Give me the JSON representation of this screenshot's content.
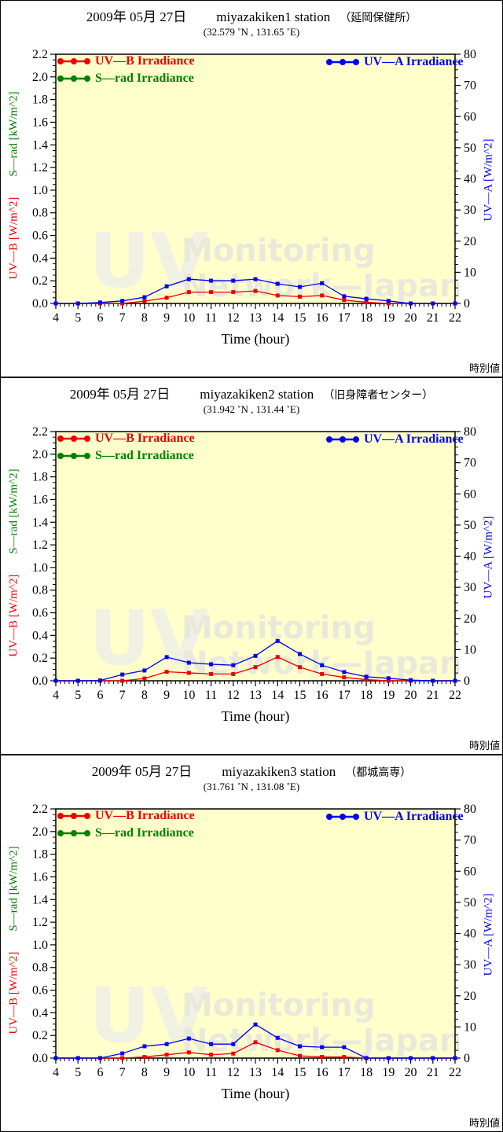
{
  "watermark": {
    "big": "UV",
    "line1": "Monitoring",
    "line2": "Network—Japan"
  },
  "footer_note": "時別値",
  "colors": {
    "uvb": "#ee0000",
    "srad": "#008000",
    "uva": "#0000ee",
    "plot_bg": "#ffffcc",
    "frame": "#000000",
    "watermark_big": "#f1f1e3",
    "watermark_words": "#e9e9db"
  },
  "legend": {
    "uvb": "UV—B Irradiance",
    "srad": "S—rad Irradiance",
    "uva": "UV—A Irradiance"
  },
  "axes": {
    "xlabel": "Time (hour)",
    "left_label_uvb": "UV—B [W/m^2]",
    "left_label_srad": "S—rad [kW/m^2]",
    "right_label": "UV—A [W/m^2]"
  },
  "panels": [
    {
      "title_date": "2009年 05月 27日",
      "title_station": "miyazakiken1 station",
      "title_site": "（延岡保健所）",
      "subtitle": "(32.579 ˚N , 131.65 ˚E)"
    },
    {
      "title_date": "2009年 05月 27日",
      "title_station": "miyazakiken2 station",
      "title_site": "（旧身障者センター）",
      "subtitle": "(31.942 ˚N , 131.44 ˚E)"
    },
    {
      "title_date": "2009年 05月 27日",
      "title_station": "miyazakiken3 station",
      "title_site": "（都城高専）",
      "subtitle": "(31.761 ˚N , 131.08 ˚E)"
    }
  ],
  "chart_data": [
    {
      "type": "line",
      "title": "2009年 05月 27日 miyazakiken1 station （延岡保健所）",
      "xlabel": "Time (hour)",
      "x": [
        4,
        5,
        6,
        7,
        8,
        9,
        10,
        11,
        12,
        13,
        14,
        15,
        16,
        17,
        18,
        19,
        20,
        21,
        22
      ],
      "axis_left": {
        "label": "UV—B [W/m^2] / S—rad [kW/m^2]",
        "range": [
          0,
          2.2
        ],
        "tick_step": 0.2,
        "minor_step": 0.05
      },
      "axis_right": {
        "label": "UV—A [W/m^2]",
        "range": [
          0,
          80
        ],
        "tick_step": 10,
        "minor_step": 2.5
      },
      "x_minor_step": 0.2,
      "series": [
        {
          "name": "UV—B Irradiance",
          "axis": "left",
          "color_key": "uvb",
          "values": [
            0,
            0,
            0,
            0,
            0.02,
            0.05,
            0.1,
            0.1,
            0.1,
            0.11,
            0.07,
            0.06,
            0.07,
            0.03,
            0.01,
            0,
            0,
            0,
            0
          ]
        },
        {
          "name": "S—rad Irradiance",
          "axis": "left",
          "color_key": "srad",
          "values": []
        },
        {
          "name": "UV—A Irradiance",
          "axis": "right",
          "color_key": "uva",
          "values": [
            0,
            0,
            0.3,
            0.8,
            2.0,
            5.5,
            7.8,
            7.3,
            7.3,
            7.8,
            6.3,
            5.3,
            6.5,
            2.3,
            1.5,
            0.8,
            0,
            0,
            0
          ]
        }
      ]
    },
    {
      "type": "line",
      "title": "2009年 05月 27日 miyazakiken2 station （旧身障者センター）",
      "xlabel": "Time (hour)",
      "x": [
        4,
        5,
        6,
        7,
        8,
        9,
        10,
        11,
        12,
        13,
        14,
        15,
        16,
        17,
        18,
        19,
        20,
        21,
        22
      ],
      "axis_left": {
        "label": "UV—B [W/m^2] / S—rad [kW/m^2]",
        "range": [
          0,
          2.2
        ],
        "tick_step": 0.2,
        "minor_step": 0.05
      },
      "axis_right": {
        "label": "UV—A [W/m^2]",
        "range": [
          0,
          80
        ],
        "tick_step": 10,
        "minor_step": 2.5
      },
      "x_minor_step": 0.2,
      "series": [
        {
          "name": "UV—B Irradiance",
          "axis": "left",
          "color_key": "uvb",
          "values": [
            0,
            0,
            0,
            0,
            0.02,
            0.08,
            0.07,
            0.06,
            0.06,
            0.12,
            0.21,
            0.12,
            0.06,
            0.03,
            0.01,
            0,
            0,
            0,
            0
          ]
        },
        {
          "name": "S—rad Irradiance",
          "axis": "left",
          "color_key": "srad",
          "values": []
        },
        {
          "name": "UV—A Irradiance",
          "axis": "right",
          "color_key": "uva",
          "values": [
            0,
            0,
            0.1,
            2.0,
            3.3,
            7.6,
            5.8,
            5.3,
            5.0,
            8.0,
            12.8,
            8.6,
            5.0,
            2.8,
            1.3,
            0.8,
            0.2,
            0,
            0
          ]
        }
      ]
    },
    {
      "type": "line",
      "title": "2009年 05月 27日 miyazakiken3 station （都城高専）",
      "xlabel": "Time (hour)",
      "x": [
        4,
        5,
        6,
        7,
        8,
        9,
        10,
        11,
        12,
        13,
        14,
        15,
        16,
        17,
        18,
        19,
        20,
        21,
        22
      ],
      "axis_left": {
        "label": "UV—B [W/m^2] / S—rad [kW/m^2]",
        "range": [
          0,
          2.2
        ],
        "tick_step": 0.2,
        "minor_step": 0.05
      },
      "axis_right": {
        "label": "UV—A [W/m^2]",
        "range": [
          0,
          80
        ],
        "tick_step": 10,
        "minor_step": 2.5
      },
      "x_minor_step": 0.2,
      "series": [
        {
          "name": "UV—B Irradiance",
          "axis": "left",
          "color_key": "uvb",
          "values": [
            0,
            0,
            0,
            0,
            0.01,
            0.03,
            0.05,
            0.03,
            0.04,
            0.14,
            0.07,
            0.02,
            0.01,
            0.01,
            0,
            0,
            0,
            0,
            0
          ]
        },
        {
          "name": "S—rad Irradiance",
          "axis": "left",
          "color_key": "srad",
          "values": []
        },
        {
          "name": "UV—A Irradiance",
          "axis": "right",
          "color_key": "uva",
          "values": [
            0,
            0,
            0,
            1.5,
            3.8,
            4.5,
            6.3,
            4.5,
            4.5,
            10.8,
            6.5,
            3.8,
            3.5,
            3.5,
            0,
            0,
            0,
            0,
            0
          ]
        }
      ]
    }
  ]
}
